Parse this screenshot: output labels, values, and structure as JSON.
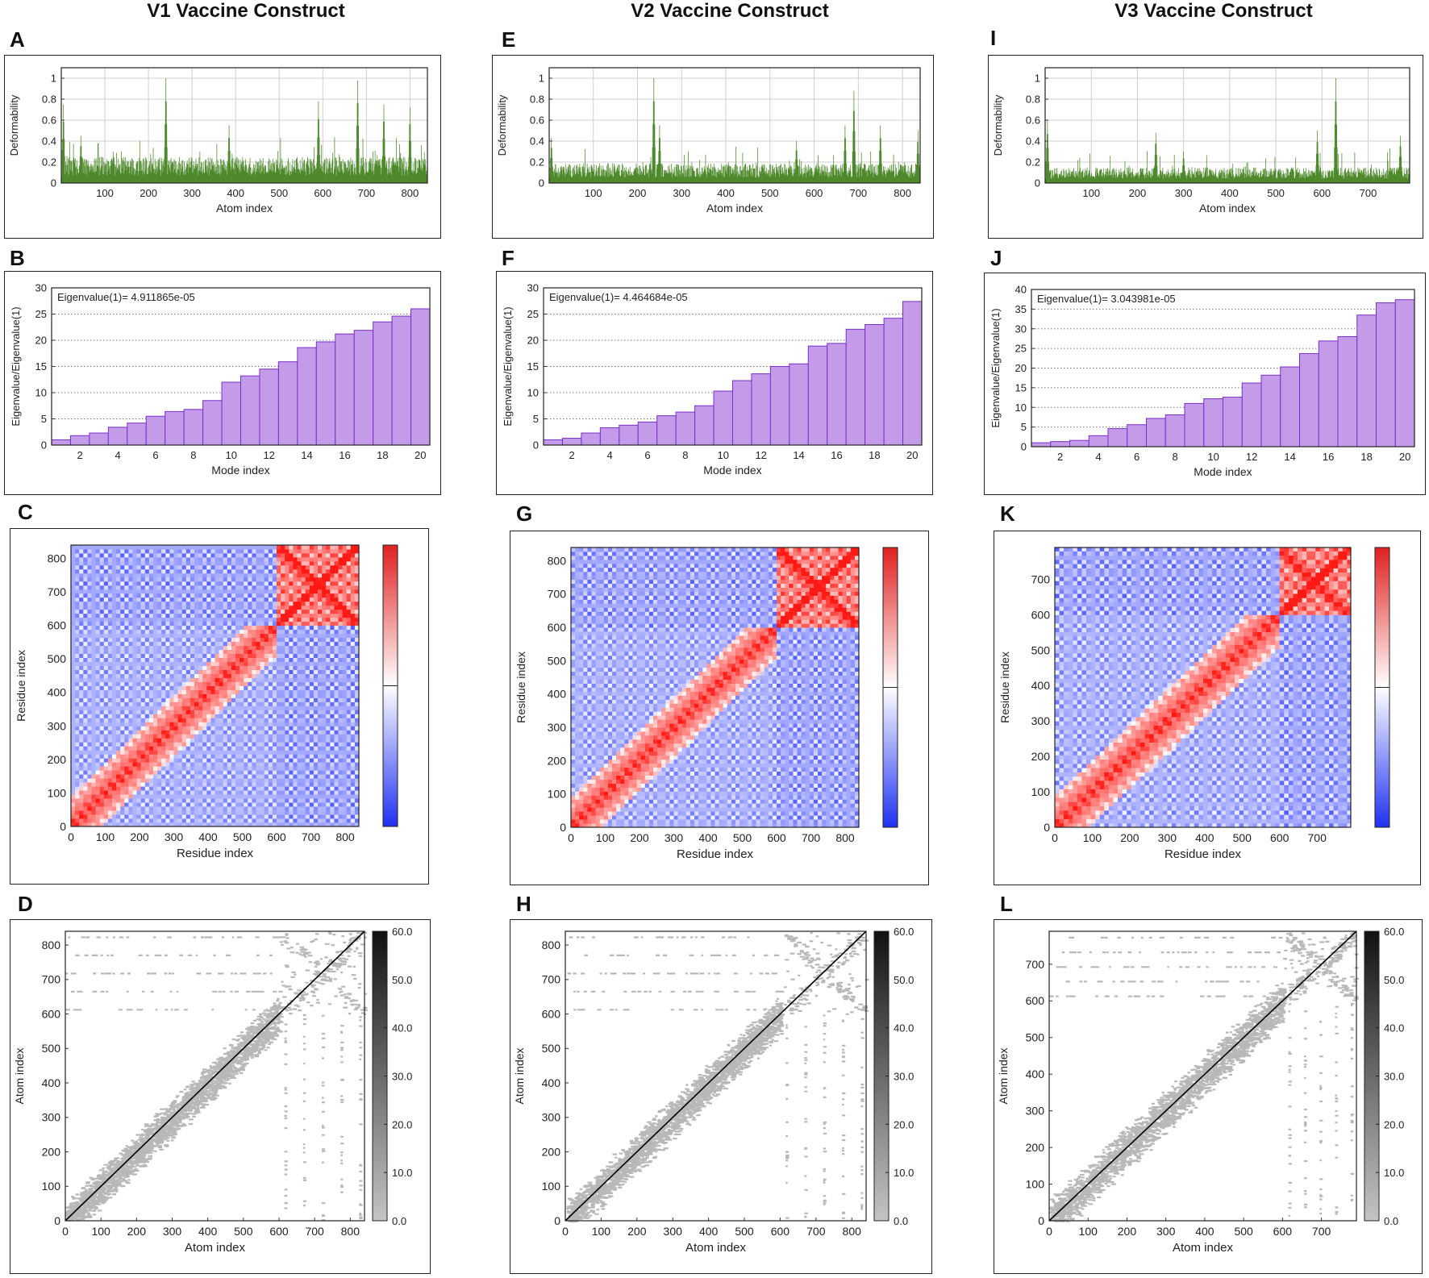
{
  "columns": [
    "V1 Vaccine Construct",
    "V2 Vaccine Construct",
    "V3 Vaccine Construct"
  ],
  "colors": {
    "deformability_bars": "#4e8a2c",
    "eigen_fill": "#c39be8",
    "eigen_edge": "#7b2fc9",
    "corr_positive": "#e02020",
    "corr_negative": "#2030f0",
    "elastic_gray": "#b8b8b8",
    "diagonal": "#000000"
  },
  "chart_data": [
    {
      "panel": "A",
      "type": "bar",
      "title": "",
      "xlabel": "Atom index",
      "ylabel": "Deformability",
      "xlim": [
        0,
        840
      ],
      "ylim": [
        0,
        1.1
      ],
      "xticks": [
        100,
        200,
        300,
        400,
        500,
        600,
        700,
        800
      ],
      "yticks": [
        0,
        0.2,
        0.4,
        0.6,
        0.8,
        1
      ],
      "grid": true,
      "baseline": 0.2,
      "peaks": [
        [
          5,
          0.75
        ],
        [
          45,
          0.45
        ],
        [
          240,
          1.0
        ],
        [
          385,
          0.55
        ],
        [
          590,
          0.78
        ],
        [
          680,
          0.98
        ],
        [
          740,
          0.75
        ],
        [
          800,
          0.72
        ]
      ]
    },
    {
      "panel": "E",
      "type": "bar",
      "title": "",
      "xlabel": "Atom index",
      "ylabel": "Deformability",
      "xlim": [
        0,
        840
      ],
      "ylim": [
        0,
        1.1
      ],
      "xticks": [
        100,
        200,
        300,
        400,
        500,
        600,
        700,
        800
      ],
      "yticks": [
        0,
        0.2,
        0.4,
        0.6,
        0.8,
        1
      ],
      "grid": true,
      "baseline": 0.15,
      "peaks": [
        [
          5,
          0.43
        ],
        [
          237,
          1.0
        ],
        [
          250,
          0.55
        ],
        [
          560,
          0.4
        ],
        [
          670,
          0.55
        ],
        [
          690,
          0.88
        ],
        [
          750,
          0.55
        ],
        [
          835,
          0.5
        ]
      ]
    },
    {
      "panel": "I",
      "type": "bar",
      "title": "",
      "xlabel": "Atom index",
      "ylabel": "Deformability",
      "xlim": [
        0,
        790
      ],
      "ylim": [
        0,
        1.1
      ],
      "xticks": [
        100,
        200,
        300,
        400,
        500,
        600,
        700
      ],
      "yticks": [
        0,
        0.2,
        0.4,
        0.6,
        0.8,
        1
      ],
      "grid": true,
      "baseline": 0.12,
      "peaks": [
        [
          5,
          0.6
        ],
        [
          240,
          0.48
        ],
        [
          300,
          0.3
        ],
        [
          590,
          0.5
        ],
        [
          630,
          1.0
        ],
        [
          770,
          0.45
        ]
      ]
    },
    {
      "panel": "B",
      "type": "bar",
      "title": "",
      "xlabel": "Mode index",
      "ylabel": "Eigenvalue/Eigenvalue(1)",
      "annotation": "Eigenvalue(1)= 4.911865e-05",
      "xlim": [
        0.5,
        20.5
      ],
      "ylim": [
        0,
        30
      ],
      "xticks": [
        2,
        4,
        6,
        8,
        10,
        12,
        14,
        16,
        18,
        20
      ],
      "yticks": [
        0,
        5,
        10,
        15,
        20,
        25,
        30
      ],
      "x": [
        1,
        2,
        3,
        4,
        5,
        6,
        7,
        8,
        9,
        10,
        11,
        12,
        13,
        14,
        15,
        16,
        17,
        18,
        19,
        20
      ],
      "values": [
        1.0,
        1.8,
        2.3,
        3.4,
        4.2,
        5.5,
        6.4,
        6.8,
        8.5,
        12.0,
        13.2,
        14.5,
        15.9,
        18.6,
        19.7,
        21.2,
        21.9,
        23.5,
        24.6,
        26.0
      ]
    },
    {
      "panel": "F",
      "type": "bar",
      "title": "",
      "xlabel": "Mode index",
      "ylabel": "Eigenvalue/Eigenvalue(1)",
      "annotation": "Eigenvalue(1)= 4.464684e-05",
      "xlim": [
        0.5,
        20.5
      ],
      "ylim": [
        0,
        30
      ],
      "xticks": [
        2,
        4,
        6,
        8,
        10,
        12,
        14,
        16,
        18,
        20
      ],
      "yticks": [
        0,
        5,
        10,
        15,
        20,
        25,
        30
      ],
      "x": [
        1,
        2,
        3,
        4,
        5,
        6,
        7,
        8,
        9,
        10,
        11,
        12,
        13,
        14,
        15,
        16,
        17,
        18,
        19,
        20
      ],
      "values": [
        1.0,
        1.3,
        2.3,
        3.3,
        3.8,
        4.4,
        5.6,
        6.3,
        7.5,
        10.3,
        12.3,
        13.6,
        15.0,
        15.5,
        18.9,
        19.4,
        22.1,
        23.0,
        24.2,
        27.4
      ]
    },
    {
      "panel": "J",
      "type": "bar",
      "title": "",
      "xlabel": "Mode index",
      "ylabel": "Eigenvalue/Eigenvalue(1)",
      "annotation": "Eigenvalue(1)= 3.043981e-05",
      "xlim": [
        0.5,
        20.5
      ],
      "ylim": [
        0,
        40
      ],
      "xticks": [
        2,
        4,
        6,
        8,
        10,
        12,
        14,
        16,
        18,
        20
      ],
      "yticks": [
        0,
        5,
        10,
        15,
        20,
        25,
        30,
        35,
        40
      ],
      "x": [
        1,
        2,
        3,
        4,
        5,
        6,
        7,
        8,
        9,
        10,
        11,
        12,
        13,
        14,
        15,
        16,
        17,
        18,
        19,
        20
      ],
      "values": [
        1.0,
        1.3,
        1.6,
        2.8,
        4.6,
        5.6,
        7.2,
        8.1,
        11.0,
        12.2,
        12.6,
        16.2,
        18.2,
        20.3,
        23.7,
        26.9,
        28.0,
        33.5,
        36.6,
        37.4
      ]
    },
    {
      "panel": "C",
      "type": "heatmap",
      "title": "",
      "xlabel": "Residue index",
      "ylabel": "Residue index",
      "xlim": [
        0,
        840
      ],
      "ylim": [
        0,
        840
      ],
      "domain_split": 600,
      "xticks": [
        0,
        100,
        200,
        300,
        400,
        500,
        600,
        700,
        800
      ],
      "yticks": [
        0,
        100,
        200,
        300,
        400,
        500,
        600,
        700,
        800
      ],
      "colorbar": "red (positive) - white - blue (negative)"
    },
    {
      "panel": "G",
      "type": "heatmap",
      "title": "",
      "xlabel": "Residue index",
      "ylabel": "Residue index",
      "xlim": [
        0,
        840
      ],
      "ylim": [
        0,
        840
      ],
      "domain_split": 600,
      "xticks": [
        0,
        100,
        200,
        300,
        400,
        500,
        600,
        700,
        800
      ],
      "yticks": [
        0,
        100,
        200,
        300,
        400,
        500,
        600,
        700,
        800
      ],
      "colorbar": "red (positive) - white - blue (negative)"
    },
    {
      "panel": "K",
      "type": "heatmap",
      "title": "",
      "xlabel": "Residue index",
      "ylabel": "Residue index",
      "xlim": [
        0,
        790
      ],
      "ylim": [
        0,
        790
      ],
      "domain_split": 600,
      "xticks": [
        0,
        100,
        200,
        300,
        400,
        500,
        600,
        700
      ],
      "yticks": [
        0,
        100,
        200,
        300,
        400,
        500,
        600,
        700
      ],
      "colorbar": "red (positive) - white - blue (negative)"
    },
    {
      "panel": "D",
      "type": "scatter",
      "title": "",
      "xlabel": "Atom index",
      "ylabel": "Atom index",
      "xlim": [
        0,
        840
      ],
      "ylim": [
        0,
        840
      ],
      "domain_split": 600,
      "xticks": [
        0,
        100,
        200,
        300,
        400,
        500,
        600,
        700,
        800
      ],
      "yticks": [
        0,
        100,
        200,
        300,
        400,
        500,
        600,
        700,
        800
      ],
      "colorbar_ticks": [
        "0.0",
        "10.0",
        "20.0",
        "30.0",
        "40.0",
        "50.0",
        "60.0"
      ]
    },
    {
      "panel": "H",
      "type": "scatter",
      "title": "",
      "xlabel": "Atom index",
      "ylabel": "Atom index",
      "xlim": [
        0,
        840
      ],
      "ylim": [
        0,
        840
      ],
      "domain_split": 600,
      "xticks": [
        0,
        100,
        200,
        300,
        400,
        500,
        600,
        700,
        800
      ],
      "yticks": [
        0,
        100,
        200,
        300,
        400,
        500,
        600,
        700,
        800
      ],
      "colorbar_ticks": [
        "0.0",
        "10.0",
        "20.0",
        "30.0",
        "40.0",
        "50.0",
        "60.0"
      ]
    },
    {
      "panel": "L",
      "type": "scatter",
      "title": "",
      "xlabel": "Atom index",
      "ylabel": "Atom index",
      "xlim": [
        0,
        790
      ],
      "ylim": [
        0,
        790
      ],
      "domain_split": 600,
      "xticks": [
        0,
        100,
        200,
        300,
        400,
        500,
        600,
        700
      ],
      "yticks": [
        0,
        100,
        200,
        300,
        400,
        500,
        600,
        700
      ],
      "colorbar_ticks": [
        "0.0",
        "10.0",
        "20.0",
        "30.0",
        "40.0",
        "50.0",
        "60.0"
      ]
    }
  ]
}
